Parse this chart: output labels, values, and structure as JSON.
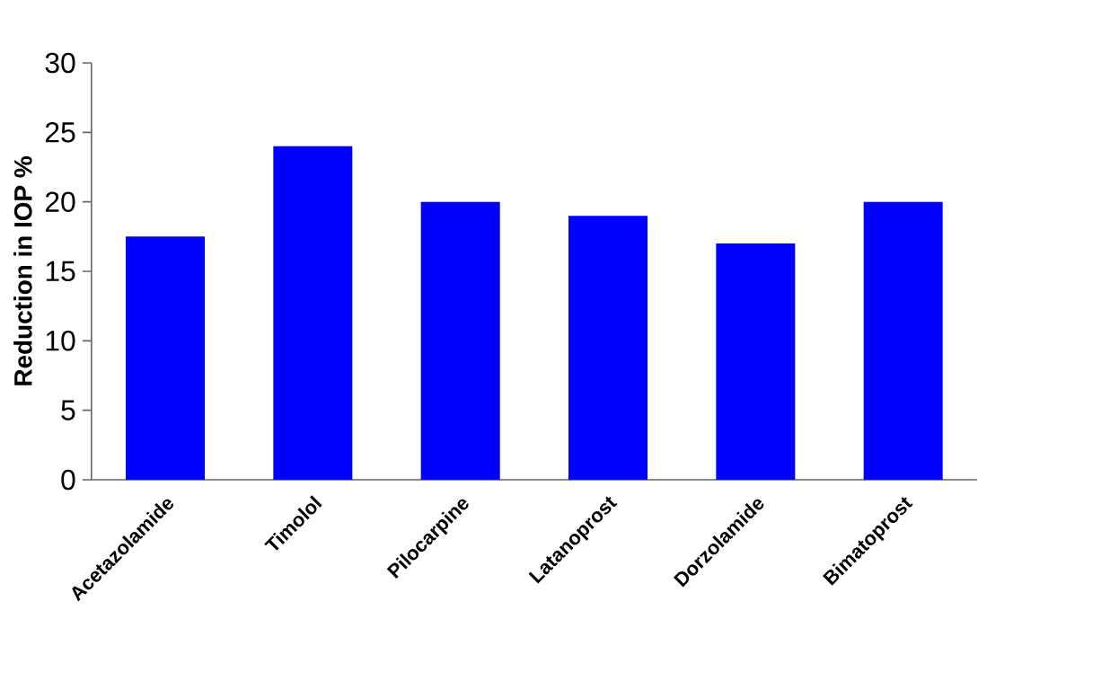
{
  "chart_data": {
    "type": "bar",
    "ylabel": "Reduction in IOP %",
    "categories": [
      "Acetazolamide",
      "Timolol",
      "Pilocarpine",
      "Latanoprost",
      "Dorzolamide",
      "Bimatoprost"
    ],
    "values": [
      17.5,
      24,
      20,
      19,
      17,
      20
    ],
    "color": "#0000ff",
    "ylim": [
      0,
      30
    ],
    "yticks": [
      0,
      5,
      10,
      15,
      20,
      25,
      30
    ]
  }
}
